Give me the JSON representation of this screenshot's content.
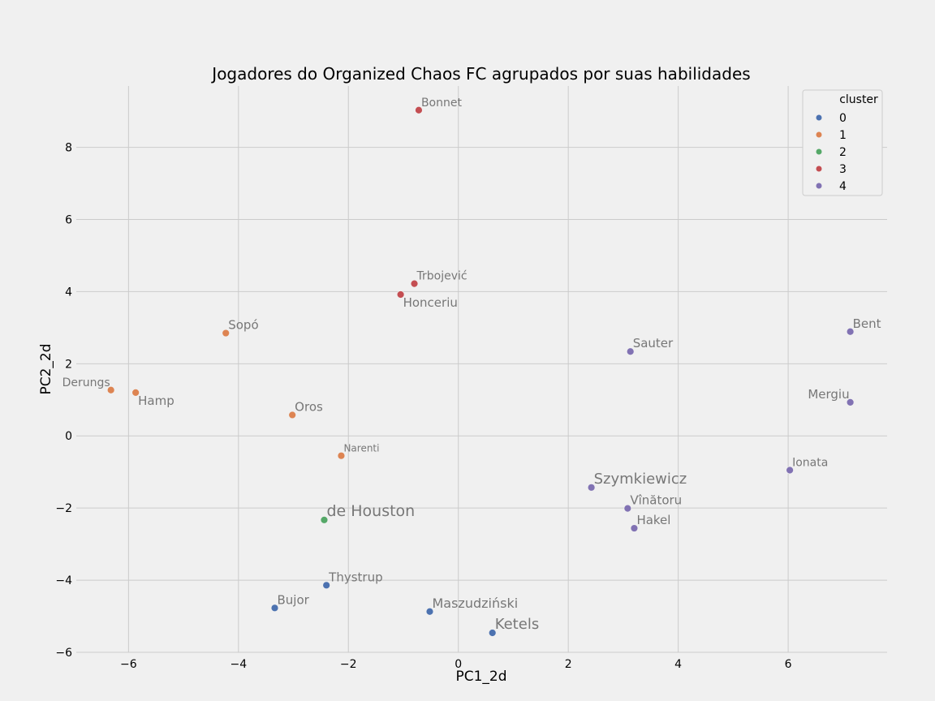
{
  "chart_data": {
    "type": "scatter",
    "title": "Jogadores do Organized Chaos FC agrupados por suas habilidades",
    "xlabel": "PC1_2d",
    "ylabel": "PC2_2d",
    "xlim": [
      -6.95,
      7.8
    ],
    "ylim": [
      -6.0,
      9.7
    ],
    "xticks": [
      -6,
      -4,
      -2,
      0,
      2,
      4,
      6
    ],
    "yticks": [
      -6,
      -4,
      -2,
      0,
      2,
      4,
      6,
      8
    ],
    "xtick_labels": [
      "−6",
      "−4",
      "−2",
      "0",
      "2",
      "4",
      "6"
    ],
    "ytick_labels": [
      "−6",
      "−4",
      "−2",
      "0",
      "2",
      "4",
      "6",
      "8"
    ],
    "grid": true,
    "legend": {
      "title": "cluster",
      "placement": "top-right",
      "entries": [
        {
          "label": "0",
          "color": "#4c72b0"
        },
        {
          "label": "1",
          "color": "#dd8452"
        },
        {
          "label": "2",
          "color": "#55a868"
        },
        {
          "label": "3",
          "color": "#c44e52"
        },
        {
          "label": "4",
          "color": "#8172b3"
        }
      ]
    },
    "points": [
      {
        "name": "Bonnet",
        "x": -0.72,
        "y": 9.03,
        "cluster": 3,
        "label_size": 14,
        "label_pos": "above-right"
      },
      {
        "name": "Trbojević",
        "x": -0.8,
        "y": 4.22,
        "cluster": 3,
        "label_size": 14,
        "label_pos": "above-right"
      },
      {
        "name": "Honceriu",
        "x": -1.05,
        "y": 3.92,
        "cluster": 3,
        "label_size": 15,
        "label_pos": "below-right"
      },
      {
        "name": "Sopó",
        "x": -4.23,
        "y": 2.85,
        "cluster": 1,
        "label_size": 15,
        "label_pos": "above-right"
      },
      {
        "name": "Derungs",
        "x": -6.32,
        "y": 1.27,
        "cluster": 1,
        "label_size": 14,
        "label_pos": "above-left"
      },
      {
        "name": "Hamp",
        "x": -5.87,
        "y": 1.2,
        "cluster": 1,
        "label_size": 15,
        "label_pos": "below-right"
      },
      {
        "name": "Oros",
        "x": -3.02,
        "y": 0.58,
        "cluster": 1,
        "label_size": 15,
        "label_pos": "above-right"
      },
      {
        "name": "Narenti",
        "x": -2.13,
        "y": -0.55,
        "cluster": 1,
        "label_size": 12,
        "label_pos": "above-right"
      },
      {
        "name": "de Houston",
        "x": -2.44,
        "y": -2.33,
        "cluster": 2,
        "label_size": 19,
        "label_pos": "above-right"
      },
      {
        "name": "Thystrup",
        "x": -2.4,
        "y": -4.14,
        "cluster": 0,
        "label_size": 15,
        "label_pos": "above-right"
      },
      {
        "name": "Bujor",
        "x": -3.34,
        "y": -4.77,
        "cluster": 0,
        "label_size": 15,
        "label_pos": "above-right"
      },
      {
        "name": "Maszudziński",
        "x": -0.52,
        "y": -4.87,
        "cluster": 0,
        "label_size": 16,
        "label_pos": "above-right"
      },
      {
        "name": "Ketels",
        "x": 0.62,
        "y": -5.46,
        "cluster": 0,
        "label_size": 18,
        "label_pos": "above-right"
      },
      {
        "name": "Sauter",
        "x": 3.13,
        "y": 2.34,
        "cluster": 4,
        "label_size": 15,
        "label_pos": "above-right"
      },
      {
        "name": "Bent",
        "x": 7.13,
        "y": 2.89,
        "cluster": 4,
        "label_size": 15,
        "label_pos": "above-right"
      },
      {
        "name": "Mergiu",
        "x": 7.13,
        "y": 0.93,
        "cluster": 4,
        "label_size": 15,
        "label_pos": "above-left"
      },
      {
        "name": "Ionata",
        "x": 6.03,
        "y": -0.95,
        "cluster": 4,
        "label_size": 14,
        "label_pos": "above-right"
      },
      {
        "name": "Szymkiewicz",
        "x": 2.42,
        "y": -1.43,
        "cluster": 4,
        "label_size": 18,
        "label_pos": "above-right"
      },
      {
        "name": "Vînătoru",
        "x": 3.08,
        "y": -2.01,
        "cluster": 4,
        "label_size": 15,
        "label_pos": "above-right"
      },
      {
        "name": "Hakel",
        "x": 3.2,
        "y": -2.56,
        "cluster": 4,
        "label_size": 15,
        "label_pos": "above-right"
      }
    ]
  }
}
